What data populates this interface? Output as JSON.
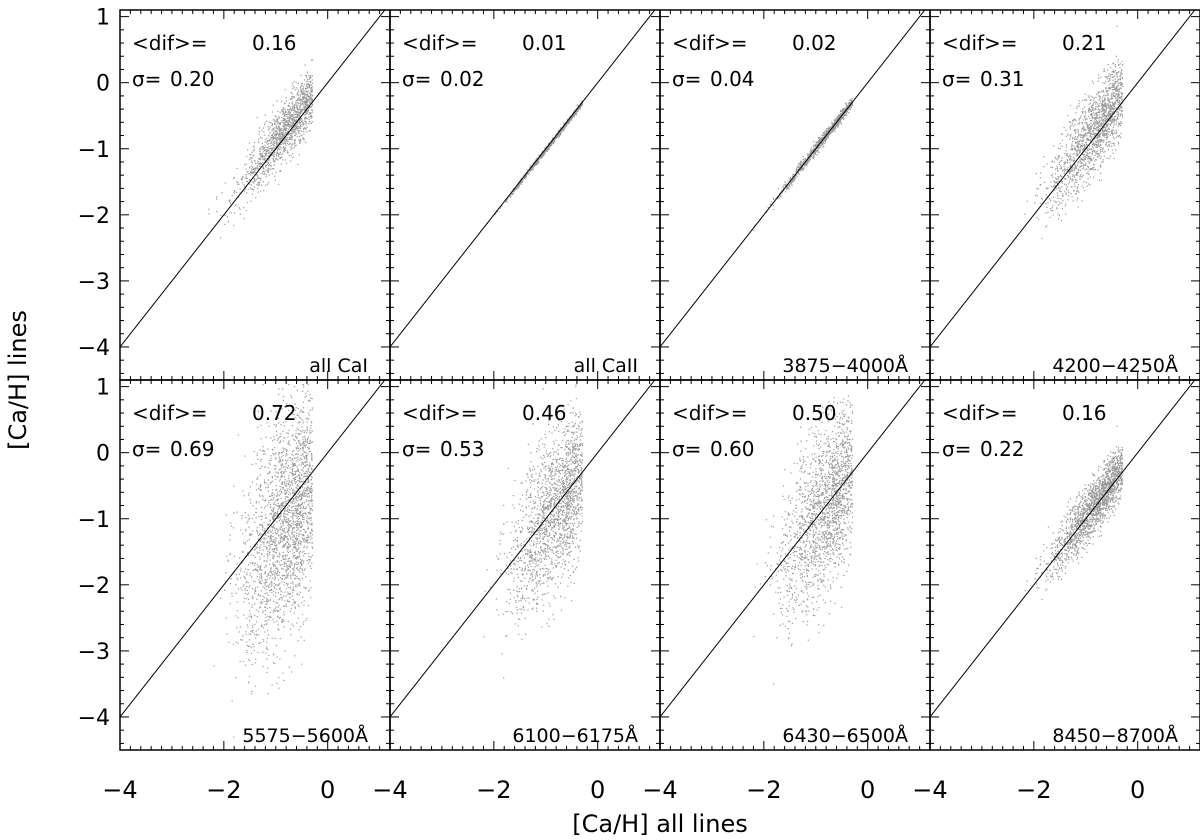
{
  "figure": {
    "ylabel": "[Ca/H] lines",
    "xlabel": "[Ca/H] all lines",
    "xlim": [
      -4,
      1.2
    ],
    "ylim": [
      -4.5,
      1.1
    ],
    "xticks": [
      -4,
      -2,
      0
    ],
    "yticks": [
      1,
      0,
      -1,
      -2,
      -3,
      -4
    ],
    "tick_labels": {
      "x": [
        "−4",
        "−2",
        "0"
      ],
      "y": [
        "1",
        "0",
        "−1",
        "−2",
        "−3",
        "−4"
      ]
    },
    "grid": false,
    "point_color": "#9a9a9a",
    "line_color": "#000000"
  },
  "chart_data": [
    {
      "type": "scatter",
      "label": "all CaI",
      "dif_label": "<dif>=",
      "dif_value": "0.16",
      "sigma_label": "σ=",
      "sigma_value": "0.20",
      "identity_line": [
        [
          -4,
          -4
        ],
        [
          1.2,
          1.2
        ]
      ]
    },
    {
      "type": "scatter",
      "label": "all CaII",
      "dif_label": "<dif>=",
      "dif_value": "0.01",
      "sigma_label": "σ=",
      "sigma_value": "0.02",
      "identity_line": [
        [
          -4,
          -4
        ],
        [
          1.2,
          1.2
        ]
      ]
    },
    {
      "type": "scatter",
      "label": "3875−4000Å",
      "dif_label": "<dif>=",
      "dif_value": "0.02",
      "sigma_label": "σ=",
      "sigma_value": "0.04",
      "identity_line": [
        [
          -4,
          -4
        ],
        [
          1.2,
          1.2
        ]
      ]
    },
    {
      "type": "scatter",
      "label": "4200−4250Å",
      "dif_label": "<dif>=",
      "dif_value": "0.21",
      "sigma_label": "σ=",
      "sigma_value": "0.31",
      "identity_line": [
        [
          -4,
          -4
        ],
        [
          1.2,
          1.2
        ]
      ]
    },
    {
      "type": "scatter",
      "label": "5575−5600Å",
      "dif_label": "<dif>=",
      "dif_value": "0.72",
      "sigma_label": "σ=",
      "sigma_value": "0.69",
      "identity_line": [
        [
          -4,
          -4
        ],
        [
          1.2,
          1.2
        ]
      ]
    },
    {
      "type": "scatter",
      "label": "6100−6175Å",
      "dif_label": "<dif>=",
      "dif_value": "0.46",
      "sigma_label": "σ=",
      "sigma_value": "0.53",
      "identity_line": [
        [
          -4,
          -4
        ],
        [
          1.2,
          1.2
        ]
      ]
    },
    {
      "type": "scatter",
      "label": "6430−6500Å",
      "dif_label": "<dif>=",
      "dif_value": "0.50",
      "sigma_label": "σ=",
      "sigma_value": "0.60",
      "identity_line": [
        [
          -4,
          -4
        ],
        [
          1.2,
          1.2
        ]
      ]
    },
    {
      "type": "scatter",
      "label": "8450−8700Å",
      "dif_label": "<dif>=",
      "dif_value": "0.16",
      "sigma_label": "σ=",
      "sigma_value": "0.22",
      "identity_line": [
        [
          -4,
          -4
        ],
        [
          1.2,
          1.2
        ]
      ]
    }
  ]
}
